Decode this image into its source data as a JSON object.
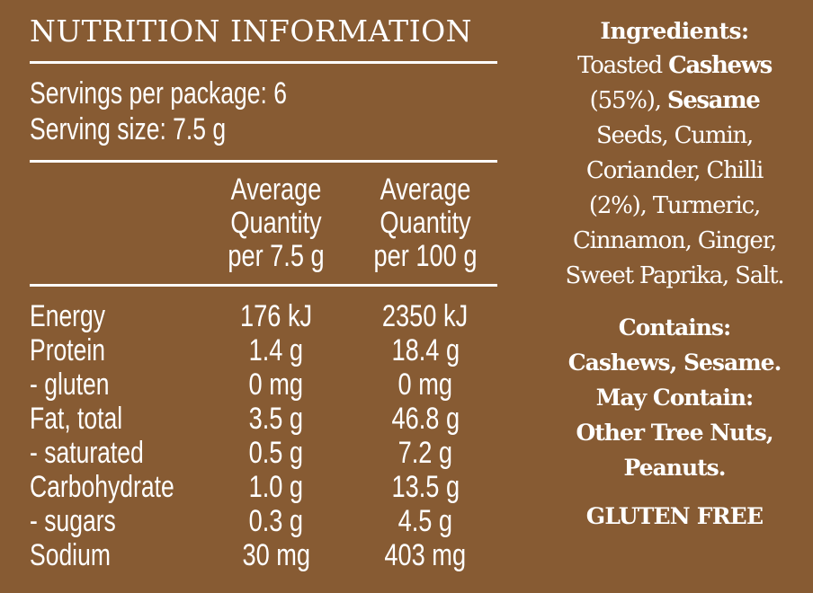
{
  "panel": {
    "title": "NUTRITION INFORMATION",
    "servings_per_package": "Servings per package: 6",
    "serving_size": "Serving size: 7.5 g",
    "column_headers": [
      [
        "Average",
        "Quantity",
        "per 7.5 g"
      ],
      [
        "Average",
        "Quantity",
        "per 100 g"
      ]
    ],
    "rows": [
      {
        "nutrient": "Energy",
        "per_serving": "176 kJ",
        "per_100g": "2350 kJ"
      },
      {
        "nutrient": "Protein",
        "per_serving": "1.4 g",
        "per_100g": "18.4 g"
      },
      {
        "nutrient": "- gluten",
        "per_serving": "0 mg",
        "per_100g": "0 mg"
      },
      {
        "nutrient": "Fat, total",
        "per_serving": "3.5 g",
        "per_100g": "46.8 g"
      },
      {
        "nutrient": "- saturated",
        "per_serving": "0.5 g",
        "per_100g": "7.2 g"
      },
      {
        "nutrient": "Carbohydrate",
        "per_serving": "1.0 g",
        "per_100g": "13.5 g"
      },
      {
        "nutrient": "- sugars",
        "per_serving": "0.3 g",
        "per_100g": "4.5 g"
      },
      {
        "nutrient": "Sodium",
        "per_serving": "30 mg",
        "per_100g": "403 mg"
      }
    ]
  },
  "ingredients": {
    "heading": "Ingredients:",
    "line1_a": "Toasted ",
    "line1_b": "Cashews",
    "line2_a": "(55%), ",
    "line2_b": "Sesame",
    "line3": "Seeds, Cumin,",
    "line4": "Coriander, Chilli",
    "line5": "(2%), Turmeric,",
    "line6": "Cinnamon, Ginger,",
    "line7": "Sweet Paprika, Salt."
  },
  "allergens": {
    "contains_heading": "Contains:",
    "contains": "Cashews, Sesame.",
    "may_contain_heading": "May Contain:",
    "may_contain_line1": "Other Tree Nuts,",
    "may_contain_line2": "Peanuts."
  },
  "claim": "GLUTEN FREE",
  "colors": {
    "background": "#875b33",
    "text": "#ffffff"
  }
}
